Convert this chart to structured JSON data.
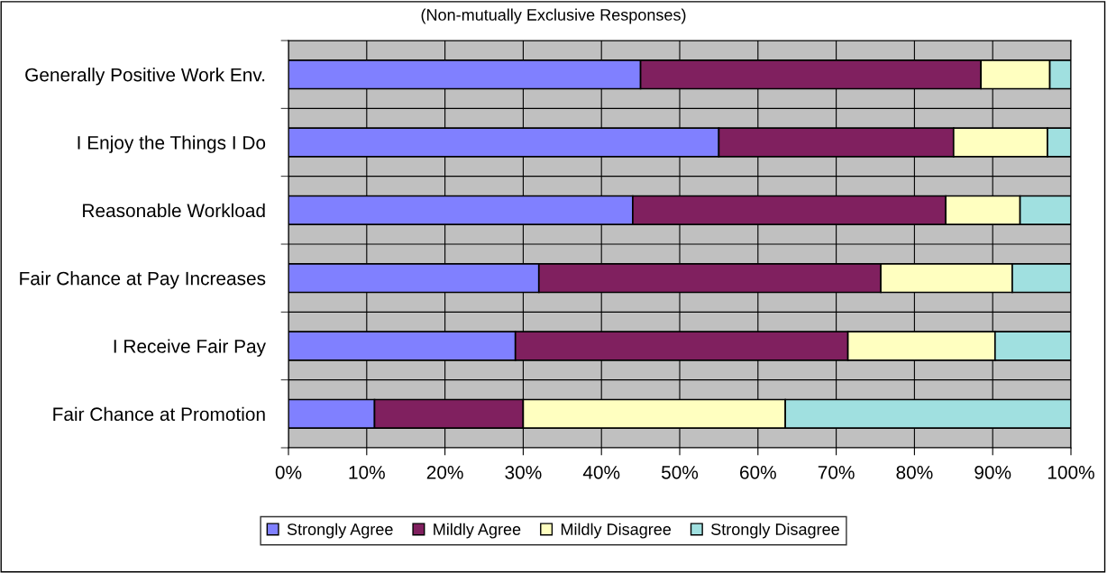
{
  "chart_data": {
    "type": "bar",
    "orientation": "horizontal",
    "stacked": true,
    "title": "(Non-mutually Exclusive Responses)",
    "categories": [
      "Generally Positive Work Env.",
      "I Enjoy the Things I Do",
      "Reasonable Workload",
      "Fair Chance at Pay Increases",
      "I Receive Fair Pay",
      "Fair Chance at Promotion"
    ],
    "series": [
      {
        "name": "Strongly Agree",
        "color": "#8080ff",
        "values": [
          45,
          55,
          44,
          32,
          29,
          11
        ]
      },
      {
        "name": "Mildly Agree",
        "color": "#80205f",
        "values": [
          43.5,
          30,
          40,
          43.7,
          42.5,
          19
        ]
      },
      {
        "name": "Mildly Disagree",
        "color": "#ffffc0",
        "values": [
          8.8,
          12,
          9.5,
          16.8,
          18.8,
          33.5
        ]
      },
      {
        "name": "Strongly Disagree",
        "color": "#a0e0e0",
        "values": [
          2.7,
          3,
          6.5,
          7.5,
          9.7,
          36.5
        ]
      }
    ],
    "xlim": [
      0,
      100
    ],
    "xticks": [
      {
        "value": 0,
        "label": "0%"
      },
      {
        "value": 10,
        "label": "10%"
      },
      {
        "value": 20,
        "label": "20%"
      },
      {
        "value": 30,
        "label": "30%"
      },
      {
        "value": 40,
        "label": "40%"
      },
      {
        "value": 50,
        "label": "50%"
      },
      {
        "value": 60,
        "label": "60%"
      },
      {
        "value": 70,
        "label": "70%"
      },
      {
        "value": 80,
        "label": "80%"
      },
      {
        "value": 90,
        "label": "90%"
      },
      {
        "value": 100,
        "label": "100%"
      }
    ],
    "grid": true,
    "legend": "bottom"
  }
}
